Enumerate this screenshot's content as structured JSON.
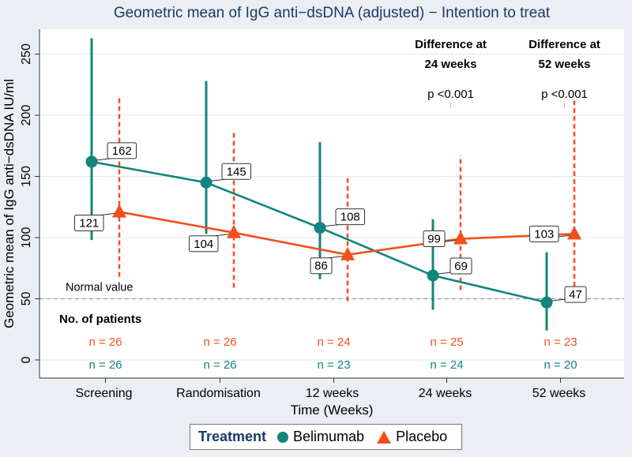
{
  "chart_data": {
    "type": "line",
    "title": "Geometric mean of IgG anti−dsDNA (adjusted) − Intention to treat",
    "xlabel": "Time (Weeks)",
    "ylabel": "Geometric mean of IgG anti−dsDNA IU/ml",
    "categories": [
      "Screening",
      "Randomisation",
      "12 weeks",
      "24 weeks",
      "52 weeks"
    ],
    "ylim": [
      0,
      270
    ],
    "yticks": [
      0,
      50,
      100,
      150,
      200,
      250
    ],
    "grid": true,
    "series": [
      {
        "name": "Belimumab",
        "color": "#12857d",
        "marker": "circle",
        "line_style": "solid",
        "values": [
          162,
          145,
          108,
          69,
          47
        ],
        "labels": [
          "162",
          "145",
          "108",
          "69",
          "47"
        ],
        "ci": [
          [
            98,
            263
          ],
          [
            103,
            228
          ],
          [
            66,
            178
          ],
          [
            41,
            115
          ],
          [
            24,
            88
          ]
        ],
        "n": [
          "n = 26",
          "n = 26",
          "n = 23",
          "n = 24",
          "n = 20"
        ]
      },
      {
        "name": "Placebo",
        "color": "#f24f1c",
        "marker": "triangle",
        "line_style": "dashed",
        "values": [
          121,
          104,
          86,
          99,
          103
        ],
        "labels": [
          "121",
          "104",
          "86",
          "99",
          "103"
        ],
        "ci": [
          [
            68,
            214
          ],
          [
            59,
            187
          ],
          [
            48,
            151
          ],
          [
            57,
            167
          ],
          [
            60,
            212
          ]
        ],
        "n": [
          "n = 26",
          "n = 26",
          "n = 24",
          "n = 25",
          "n = 23"
        ]
      }
    ],
    "reference_line": {
      "value": 50,
      "label": "Normal value"
    },
    "patients_heading": "No. of patients",
    "annotations": [
      {
        "category": "24 weeks",
        "heading_line1": "Difference at",
        "heading_line2": "24 weeks",
        "p_value": "p <0.001"
      },
      {
        "category": "52 weeks",
        "heading_line1": "Difference at",
        "heading_line2": "52 weeks",
        "p_value": "p <0.001"
      }
    ],
    "legend": {
      "title": "Treatment",
      "position": "bottom"
    }
  }
}
